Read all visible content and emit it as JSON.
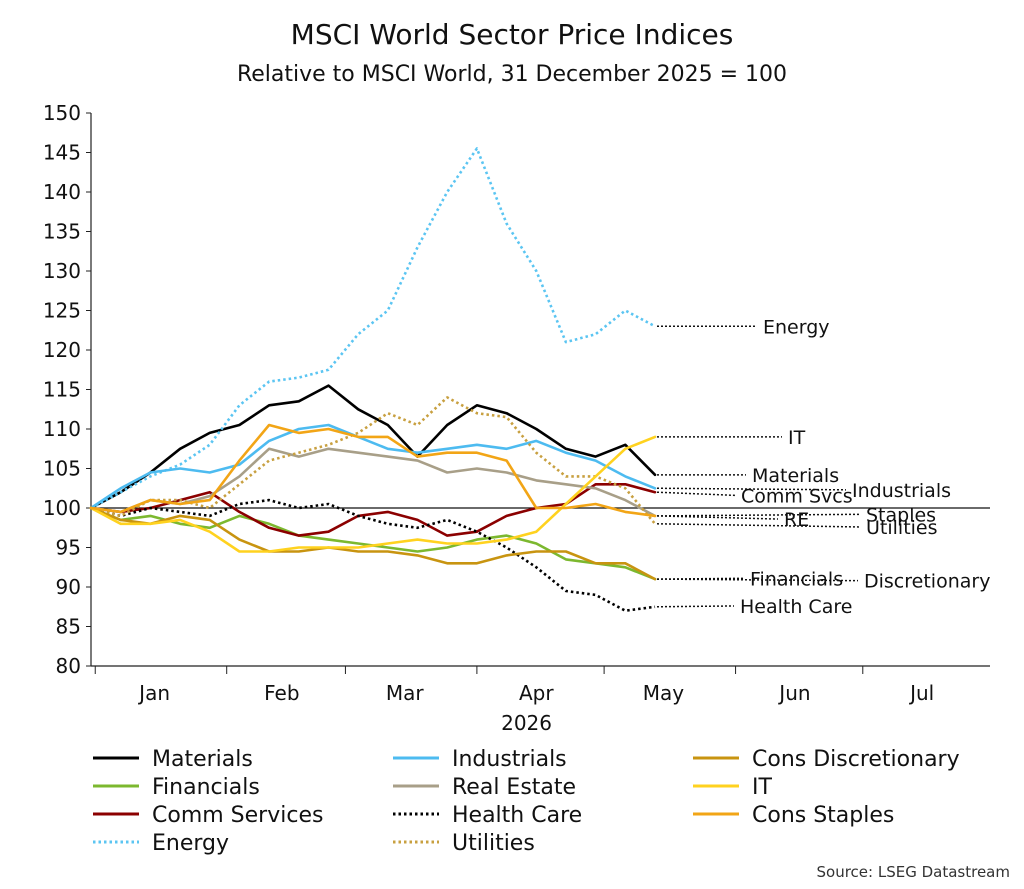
{
  "title": "MSCI World Sector Price Indices",
  "subtitle": "Relative to MSCI World, 31 December 2025 = 100",
  "source": "Source: LSEG Datastream",
  "chart_data": {
    "type": "line",
    "title": "MSCI World Sector Price Indices",
    "subtitle": "Relative to MSCI World, 31 December 2025 = 100",
    "xlabel": "2026",
    "x_range": [
      "2025-12-31",
      "2026-07-31"
    ],
    "ylim": [
      80,
      150
    ],
    "y_ticks": [
      80,
      85,
      90,
      95,
      100,
      105,
      110,
      115,
      120,
      125,
      130,
      135,
      140,
      145,
      150
    ],
    "x_tick_labels": [
      {
        "label": "Jan",
        "date": "2026-01-15"
      },
      {
        "label": "Feb",
        "date": "2026-02-14"
      },
      {
        "label": "Mar",
        "date": "2026-03-15"
      },
      {
        "label": "Apr",
        "date": "2026-04-15"
      },
      {
        "label": "May",
        "date": "2026-05-15"
      },
      {
        "label": "Jun",
        "date": "2026-06-15"
      },
      {
        "label": "Jul",
        "date": "2026-07-15"
      }
    ],
    "month_boundaries": [
      "2026-01-01",
      "2026-02-01",
      "2026-03-01",
      "2026-04-01",
      "2026-05-01",
      "2026-06-01",
      "2026-07-01"
    ],
    "reference_line": 100,
    "grid": false,
    "legend_position": "bottom",
    "dates": [
      "2025-12-31",
      "2026-01-07",
      "2026-01-14",
      "2026-01-21",
      "2026-01-28",
      "2026-02-04",
      "2026-02-11",
      "2026-02-18",
      "2026-02-25",
      "2026-03-04",
      "2026-03-11",
      "2026-03-18",
      "2026-03-25",
      "2026-04-01",
      "2026-04-08",
      "2026-04-15",
      "2026-04-22",
      "2026-04-29",
      "2026-05-06",
      "2026-05-13"
    ],
    "series": [
      {
        "name": "Materials",
        "color": "#000000",
        "style": "solid",
        "end_label": "Materials",
        "values": [
          100,
          102,
          104.5,
          107.5,
          109.5,
          110.5,
          113,
          113.5,
          115.5,
          112.5,
          110.5,
          106.5,
          110.5,
          113,
          112,
          110,
          107.5,
          106.5,
          108,
          104.2
        ]
      },
      {
        "name": "Financials",
        "color": "#7cb82f",
        "style": "solid",
        "end_label": "Financials",
        "values": [
          100,
          98.5,
          99,
          98,
          97.5,
          99,
          98,
          96.5,
          96,
          95.5,
          95,
          94.5,
          95,
          96,
          96.5,
          95.5,
          93.5,
          93,
          92.5,
          91
        ]
      },
      {
        "name": "Comm Services",
        "color": "#8b0000",
        "style": "solid",
        "end_label": "Comm Svcs",
        "values": [
          100,
          99.5,
          100,
          101,
          102,
          99.5,
          97.5,
          96.5,
          97,
          99,
          99.5,
          98.5,
          96.5,
          97,
          99,
          100,
          100.5,
          103,
          103,
          102
        ]
      },
      {
        "name": "Energy",
        "color": "#5bc5f2",
        "style": "dotted",
        "end_label": "Energy",
        "values": [
          100,
          102,
          104,
          105.5,
          108,
          113,
          116,
          116.5,
          117.5,
          122,
          125,
          133,
          140,
          145.5,
          136,
          130,
          121,
          122,
          125,
          123
        ]
      },
      {
        "name": "Industrials",
        "color": "#4dbbf0",
        "style": "solid",
        "end_label": "Industrials",
        "values": [
          100,
          102.5,
          104.5,
          105,
          104.5,
          105.5,
          108.5,
          110,
          110.5,
          109,
          107.5,
          107,
          107.5,
          108,
          107.5,
          108.5,
          107,
          106,
          104,
          102.5
        ]
      },
      {
        "name": "Real Estate",
        "color": "#a89f88",
        "style": "solid",
        "end_label": "RE",
        "values": [
          100,
          99.5,
          101,
          100.5,
          101.5,
          104,
          107.5,
          106.5,
          107.5,
          107,
          106.5,
          106,
          104.5,
          105,
          104.5,
          103.5,
          103,
          102.5,
          101,
          99
        ]
      },
      {
        "name": "Health Care",
        "color": "#000000",
        "style": "dotted",
        "end_label": "Health Care",
        "values": [
          100,
          99,
          100,
          99.5,
          99,
          100.5,
          101,
          100,
          100.5,
          99,
          98,
          97.5,
          98.5,
          97,
          95,
          92.5,
          89.5,
          89,
          87,
          87.5
        ]
      },
      {
        "name": "Utilities",
        "color": "#c8a040",
        "style": "dotted",
        "end_label": "Utilities",
        "values": [
          100,
          99,
          101,
          101,
          100,
          103,
          106,
          107,
          108,
          109.5,
          112,
          110.5,
          114,
          112,
          111.5,
          107,
          104,
          104,
          102.5,
          98
        ]
      },
      {
        "name": "Cons Discretionary",
        "color": "#c89410",
        "style": "solid",
        "end_label": "Discretionary",
        "values": [
          100,
          98.5,
          98,
          99,
          98.5,
          96,
          94.5,
          94.5,
          95,
          94.5,
          94.5,
          94,
          93,
          93,
          94,
          94.5,
          94.5,
          93,
          93,
          91
        ]
      },
      {
        "name": "IT",
        "color": "#ffd21f",
        "style": "solid",
        "end_label": "IT",
        "values": [
          100,
          98,
          98,
          98.5,
          97,
          94.5,
          94.5,
          95,
          95,
          95,
          95.5,
          96,
          95.5,
          95.5,
          96,
          97,
          100.5,
          104,
          107.5,
          109
        ]
      },
      {
        "name": "Cons Staples",
        "color": "#f2a516",
        "style": "solid",
        "end_label": "Staples",
        "values": [
          100,
          99.5,
          101,
          100.5,
          101,
          106,
          110.5,
          109.5,
          110,
          109,
          109,
          106.5,
          107,
          107,
          106,
          100,
          100,
          100.5,
          99.5,
          99
        ]
      }
    ]
  },
  "legend": [
    {
      "name": "Materials",
      "color": "#000000",
      "style": "solid"
    },
    {
      "name": "Industrials",
      "color": "#4dbbf0",
      "style": "solid"
    },
    {
      "name": "Cons Discretionary",
      "color": "#c89410",
      "style": "solid"
    },
    {
      "name": "Financials",
      "color": "#7cb82f",
      "style": "solid"
    },
    {
      "name": "Real Estate",
      "color": "#a89f88",
      "style": "solid"
    },
    {
      "name": "IT",
      "color": "#ffd21f",
      "style": "solid"
    },
    {
      "name": "Comm Services",
      "color": "#8b0000",
      "style": "solid"
    },
    {
      "name": "Health Care",
      "color": "#000000",
      "style": "dotted"
    },
    {
      "name": "Cons Staples",
      "color": "#f2a516",
      "style": "solid"
    },
    {
      "name": "Energy",
      "color": "#5bc5f2",
      "style": "dotted"
    },
    {
      "name": "Utilities",
      "color": "#c8a040",
      "style": "dotted"
    }
  ]
}
